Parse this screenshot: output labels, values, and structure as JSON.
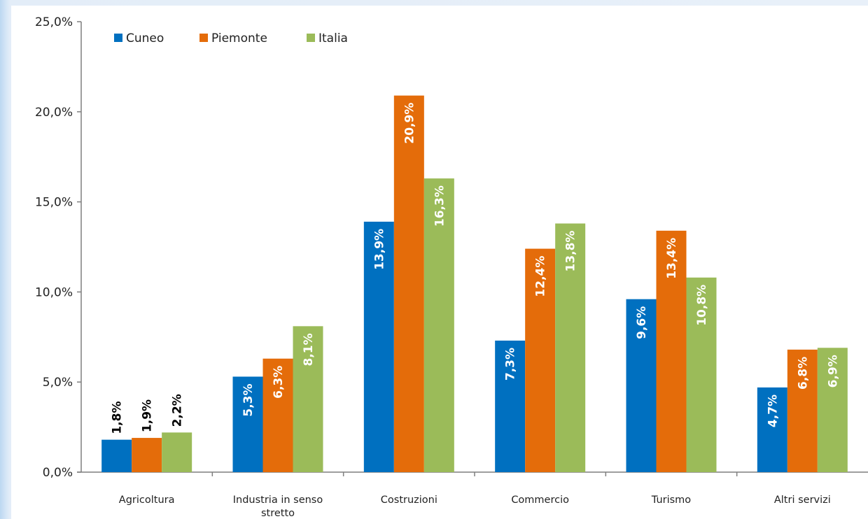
{
  "chart_data": {
    "type": "bar",
    "title": "",
    "xlabel": "",
    "ylabel": "",
    "ylim": [
      0,
      25
    ],
    "yticks": [
      0,
      5,
      10,
      15,
      20,
      25
    ],
    "ytick_labels": [
      "0,0%",
      "5,0%",
      "10,0%",
      "15,0%",
      "20,0%",
      "25,0%"
    ],
    "grid": false,
    "legend_position": "top-left",
    "categories": [
      {
        "id": "agricoltura",
        "lines": [
          "Agricoltura"
        ]
      },
      {
        "id": "industria",
        "lines": [
          "Industria in senso",
          "stretto"
        ]
      },
      {
        "id": "costruzioni",
        "lines": [
          "Costruzioni"
        ]
      },
      {
        "id": "commercio",
        "lines": [
          "Commercio"
        ]
      },
      {
        "id": "turismo",
        "lines": [
          "Turismo"
        ]
      },
      {
        "id": "altri-servizi",
        "lines": [
          "Altri servizi"
        ]
      }
    ],
    "series": [
      {
        "name": "Cuneo",
        "color": "#0070c0",
        "values": [
          1.8,
          5.3,
          13.9,
          7.3,
          9.6,
          4.7
        ],
        "labels": [
          "1,8%",
          "5,3%",
          "13,9%",
          "7,3%",
          "9,6%",
          "4,7%"
        ]
      },
      {
        "name": "Piemonte",
        "color": "#e46c0a",
        "values": [
          1.9,
          6.3,
          20.9,
          12.4,
          13.4,
          6.8
        ],
        "labels": [
          "1,9%",
          "6,3%",
          "20,9%",
          "12,4%",
          "13,4%",
          "6,8%"
        ]
      },
      {
        "name": "Italia",
        "color": "#9bbb59",
        "values": [
          2.2,
          8.1,
          16.3,
          13.8,
          10.8,
          6.9
        ],
        "labels": [
          "2,2%",
          "8,1%",
          "16,3%",
          "13,8%",
          "10,8%",
          "6,9%"
        ]
      }
    ],
    "label_color_inside": "#ffffff",
    "label_color_outside": "#000000"
  }
}
